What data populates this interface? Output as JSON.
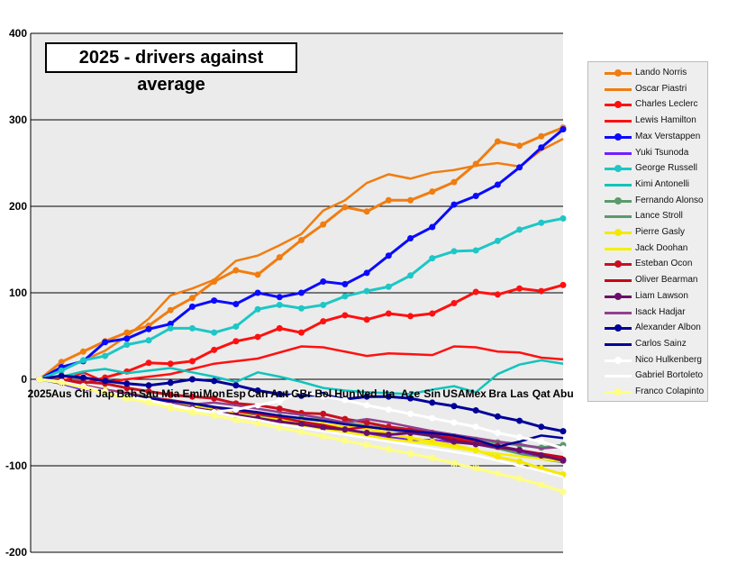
{
  "chart_data": {
    "type": "line",
    "title": "2025 - drivers against average",
    "xlabel": "",
    "ylabel": "",
    "ylim": [
      -200,
      400
    ],
    "yticks": [
      400,
      300,
      200,
      100,
      0,
      -100,
      -200
    ],
    "yticklabels": [
      "400",
      "300",
      "200",
      "100",
      "0",
      "-100",
      "-200"
    ],
    "grid": true,
    "legend_position": "right",
    "categories": [
      "2025",
      "Aus",
      "Chi",
      "Jap",
      "Bah",
      "Sau",
      "Mia",
      "Emi",
      "Mon",
      "Esp",
      "Can",
      "Aut",
      "GBr",
      "Bel",
      "Hun",
      "Ned",
      "Ita",
      "Aze",
      "Sin",
      "USA",
      "Mex",
      "Bra",
      "Las",
      "Qat",
      "Abu"
    ],
    "series": [
      {
        "name": "Lando Norris",
        "color": "#f07d10",
        "marker": "circle",
        "values": [
          0,
          20,
          32,
          44,
          54,
          62,
          80,
          94,
          113,
          126,
          121,
          141,
          161,
          179,
          199,
          194,
          207,
          207,
          217,
          228,
          249,
          275,
          270,
          281,
          291
        ]
      },
      {
        "name": "Oscar Piastri",
        "color": "#f07d10",
        "marker": "none",
        "values": [
          0,
          10,
          22,
          33,
          50,
          70,
          97,
          105,
          115,
          137,
          143,
          155,
          168,
          195,
          207,
          227,
          237,
          232,
          239,
          242,
          247,
          250,
          246,
          265,
          278
        ]
      },
      {
        "name": "Charles Leclerc",
        "color": "#ff1010",
        "marker": "circle",
        "values": [
          0,
          0,
          -5,
          2,
          9,
          19,
          18,
          21,
          34,
          44,
          49,
          59,
          54,
          67,
          74,
          69,
          76,
          73,
          76,
          88,
          101,
          98,
          105,
          102,
          109
        ]
      },
      {
        "name": "Lewis Hamilton",
        "color": "#ff1010",
        "marker": "none",
        "values": [
          0,
          -3,
          8,
          -3,
          0,
          3,
          6,
          12,
          18,
          21,
          24,
          31,
          38,
          37,
          32,
          27,
          30,
          29,
          28,
          38,
          37,
          32,
          31,
          25,
          23
        ]
      },
      {
        "name": "Max Verstappen",
        "color": "#0a0aff",
        "marker": "circle",
        "values": [
          0,
          14,
          21,
          43,
          47,
          58,
          64,
          84,
          91,
          87,
          100,
          95,
          100,
          113,
          110,
          123,
          143,
          163,
          176,
          202,
          212,
          225,
          245,
          268,
          289
        ]
      },
      {
        "name": "Yuki Tsunoda",
        "color": "#7020ff",
        "marker": "none",
        "values": [
          0,
          -5,
          -12,
          -14,
          -20,
          -25,
          -28,
          -33,
          -38,
          -41,
          -45,
          -48,
          -50,
          -55,
          -58,
          -62,
          -67,
          -70,
          -70,
          -73,
          -75,
          -80,
          -85,
          -90,
          -93
        ]
      },
      {
        "name": "George Russell",
        "color": "#1ec6c6",
        "marker": "circle",
        "values": [
          0,
          10,
          22,
          27,
          40,
          45,
          59,
          59,
          54,
          61,
          81,
          86,
          82,
          86,
          96,
          102,
          107,
          120,
          140,
          148,
          149,
          160,
          173,
          181,
          186
        ]
      },
      {
        "name": "Kimi Antonelli",
        "color": "#10c4bc",
        "marker": "none",
        "values": [
          0,
          3,
          9,
          12,
          7,
          10,
          13,
          8,
          3,
          -3,
          8,
          3,
          -3,
          -10,
          -13,
          -15,
          -16,
          -17,
          -12,
          -8,
          -15,
          6,
          17,
          22,
          18
        ]
      },
      {
        "name": "Fernando Alonso",
        "color": "#5a9a6c",
        "marker": "circle",
        "values": [
          0,
          -4,
          -9,
          -14,
          -19,
          -24,
          -28,
          -32,
          -36,
          -40,
          -43,
          -43,
          -45,
          -47,
          -50,
          -54,
          -57,
          -60,
          -63,
          -66,
          -70,
          -73,
          -76,
          -79,
          -76
        ]
      },
      {
        "name": "Lance Stroll",
        "color": "#5a9a6c",
        "marker": "none",
        "values": [
          0,
          -4,
          -8,
          -12,
          -16,
          -20,
          -25,
          -29,
          -33,
          -37,
          -39,
          -42,
          -46,
          -48,
          -52,
          -55,
          -58,
          -62,
          -66,
          -70,
          -74,
          -80,
          -86,
          -92,
          -96
        ]
      },
      {
        "name": "Pierre Gasly",
        "color": "#f5e800",
        "marker": "circle",
        "values": [
          0,
          -3,
          -8,
          -12,
          -17,
          -22,
          -27,
          -31,
          -36,
          -40,
          -44,
          -47,
          -50,
          -52,
          -55,
          -57,
          -62,
          -68,
          -72,
          -76,
          -82,
          -90,
          -95,
          -103,
          -110
        ]
      },
      {
        "name": "Jack Doohan",
        "color": "#f5f000",
        "marker": "none",
        "values": [
          0,
          -4,
          -9,
          -14,
          -19,
          -24,
          -28,
          -33,
          -37,
          -41,
          -45,
          -49,
          -53,
          -57,
          -61,
          -65,
          -69,
          -72,
          -75,
          -79,
          -83,
          -86,
          -89,
          -92,
          -95
        ]
      },
      {
        "name": "Esteban Ocon",
        "color": "#c81020",
        "marker": "circle",
        "values": [
          0,
          -2,
          -3,
          -5,
          -10,
          -14,
          -18,
          -20,
          -22,
          -28,
          -30,
          -34,
          -39,
          -40,
          -46,
          -50,
          -55,
          -58,
          -62,
          -68,
          -72,
          -77,
          -82,
          -88,
          -93
        ]
      },
      {
        "name": "Oliver Bearman",
        "color": "#c80018",
        "marker": "none",
        "values": [
          0,
          -3,
          -7,
          -12,
          -16,
          -21,
          -24,
          -28,
          -32,
          -37,
          -40,
          -44,
          -49,
          -53,
          -58,
          -55,
          -58,
          -60,
          -64,
          -70,
          -75,
          -79,
          -82,
          -86,
          -90
        ]
      },
      {
        "name": "Liam Lawson",
        "color": "#6a106a",
        "marker": "circle",
        "values": [
          0,
          -4,
          -9,
          -14,
          -18,
          -23,
          -28,
          -33,
          -37,
          -41,
          -45,
          -49,
          -52,
          -56,
          -58,
          -62,
          -64,
          -62,
          -65,
          -72,
          -75,
          -78,
          -82,
          -88,
          -94
        ]
      },
      {
        "name": "Isack Hadjar",
        "color": "#904090",
        "marker": "none",
        "values": [
          0,
          -4,
          -8,
          -12,
          -17,
          -21,
          -25,
          -29,
          -27,
          -30,
          -34,
          -38,
          -41,
          -45,
          -50,
          -46,
          -50,
          -55,
          -60,
          -64,
          -68,
          -72,
          -75,
          -80,
          -78
        ]
      },
      {
        "name": "Alexander Albon",
        "color": "#000099",
        "marker": "circle",
        "values": [
          0,
          4,
          2,
          -2,
          -5,
          -7,
          -4,
          0,
          -2,
          -7,
          -13,
          -17,
          -19,
          -18,
          -23,
          -20,
          -20,
          -22,
          -27,
          -31,
          -36,
          -43,
          -48,
          -55,
          -60
        ]
      },
      {
        "name": "Carlos Sainz",
        "color": "#000099",
        "marker": "none",
        "values": [
          0,
          -5,
          -10,
          -15,
          -18,
          -22,
          -25,
          -28,
          -32,
          -35,
          -38,
          -42,
          -45,
          -48,
          -52,
          -55,
          -58,
          -60,
          -62,
          -65,
          -70,
          -78,
          -72,
          -65,
          -68
        ]
      },
      {
        "name": "Nico Hulkenberg",
        "color": "#ffffff",
        "marker": "circle",
        "values": [
          0,
          -3,
          -8,
          -14,
          -20,
          -25,
          -31,
          -35,
          -38,
          -35,
          -30,
          -25,
          -14,
          -20,
          -24,
          -30,
          -35,
          -40,
          -45,
          -50,
          -55,
          -62,
          -67,
          -72,
          -80
        ]
      },
      {
        "name": "Gabriel Bortoleto",
        "color": "#ffffff",
        "marker": "none",
        "values": [
          0,
          -4,
          -9,
          -14,
          -19,
          -24,
          -29,
          -34,
          -38,
          -43,
          -47,
          -52,
          -56,
          -60,
          -64,
          -68,
          -72,
          -76,
          -80,
          -84,
          -88,
          -94,
          -100,
          -106,
          -113
        ]
      },
      {
        "name": "Franco Colapinto",
        "color": "#ffff80",
        "marker": "cross",
        "values": [
          0,
          -4,
          -10,
          -16,
          -22,
          -27,
          -33,
          -38,
          -42,
          -47,
          -51,
          -56,
          -61,
          -66,
          -71,
          -76,
          -81,
          -86,
          -91,
          -97,
          -103,
          -109,
          -115,
          -122,
          -130
        ]
      }
    ]
  }
}
